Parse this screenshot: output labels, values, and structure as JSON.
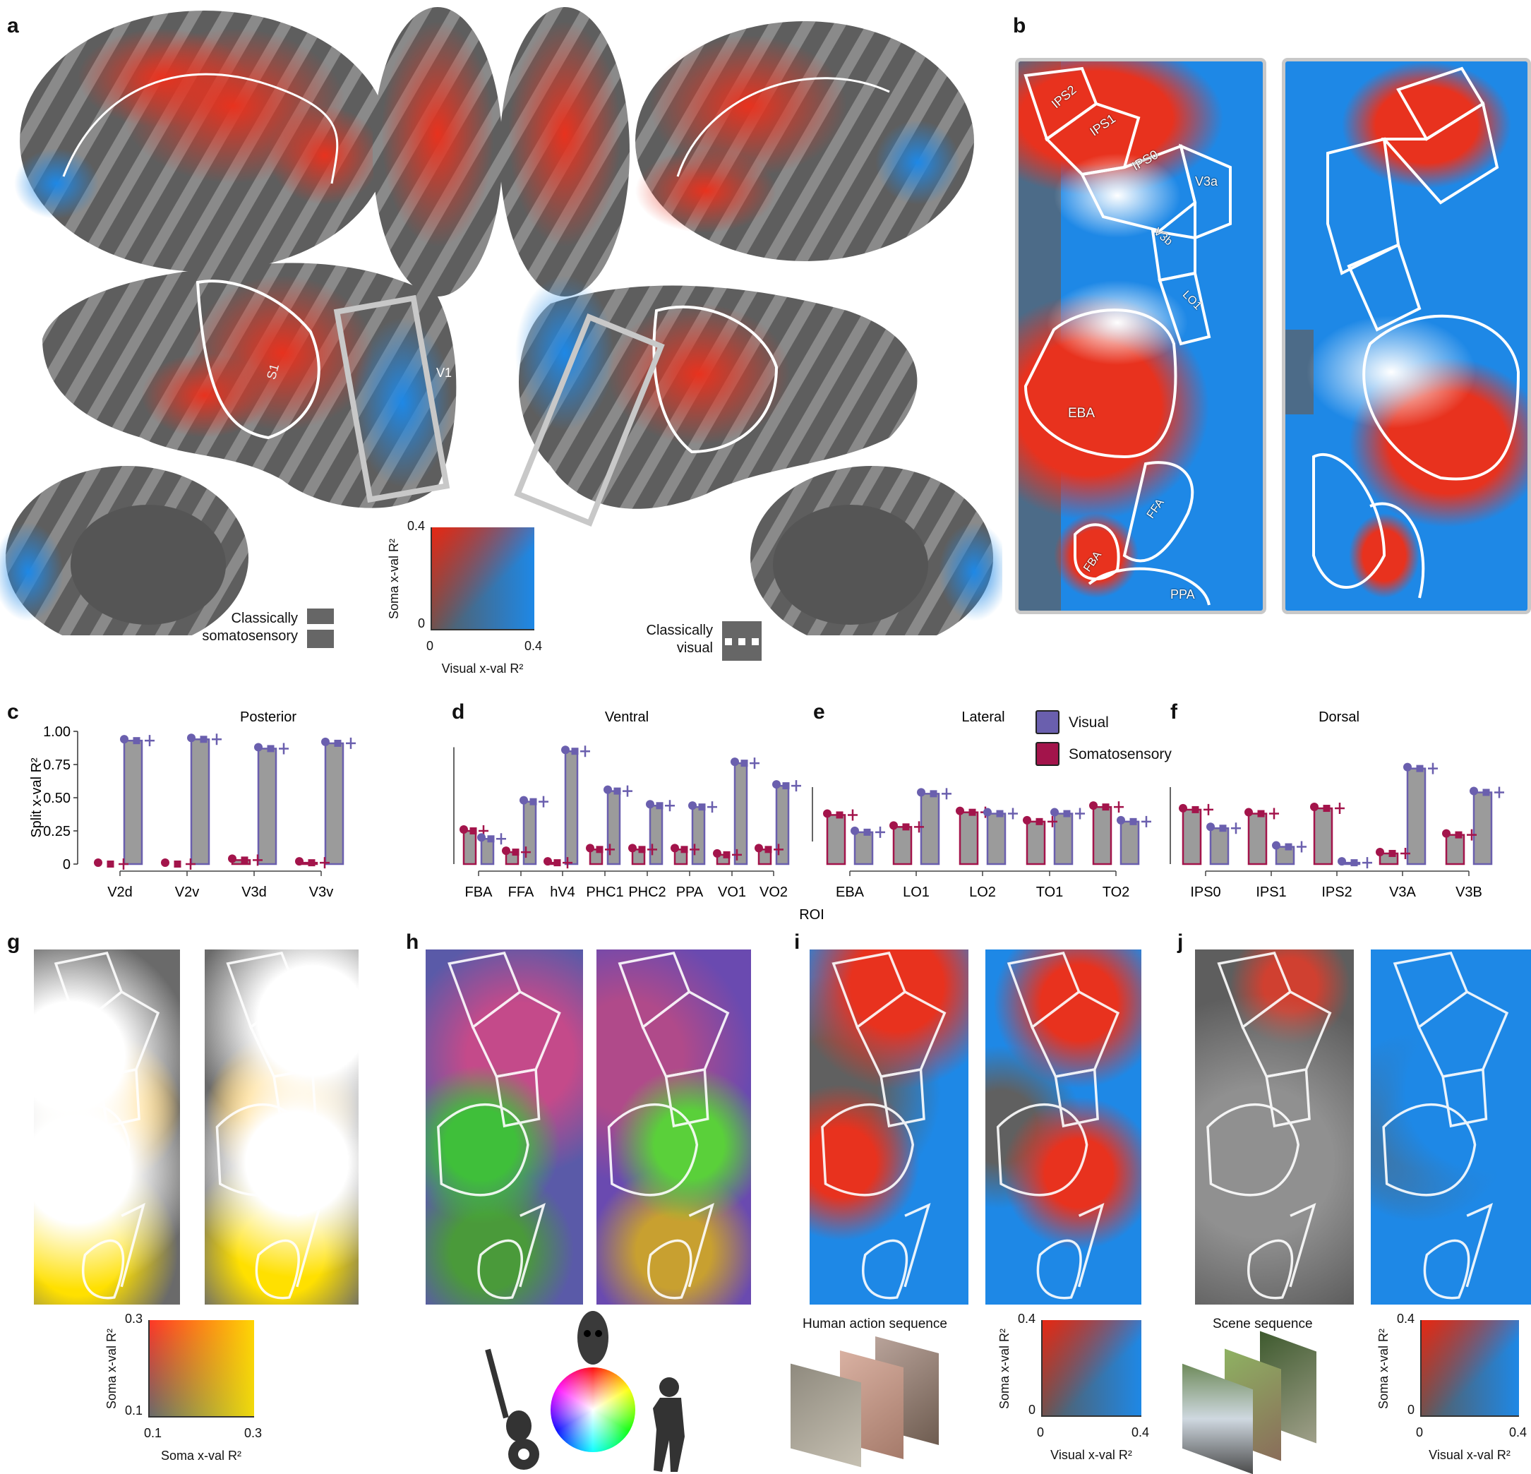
{
  "panel_labels": {
    "a": "a",
    "b": "b",
    "c": "c",
    "d": "d",
    "e": "e",
    "f": "f",
    "g": "g",
    "h": "h",
    "i": "i",
    "j": "j"
  },
  "panel_a": {
    "region_labels": {
      "s1": "S1",
      "v1": "V1"
    },
    "legend_soma": [
      "Classically",
      "somatosensory"
    ],
    "legend_visual": [
      "Classically",
      "visual"
    ],
    "colorbar": {
      "y_label": "Soma x-val R²",
      "x_label": "Visual x-val R²",
      "y_ticks": [
        "0.4",
        "0"
      ],
      "x_ticks": [
        "0",
        "0.4"
      ]
    }
  },
  "panel_b": {
    "roi_labels": [
      "IPS2",
      "IPS1",
      "IPS0",
      "V3a",
      "V3b",
      "LO1",
      "EBA",
      "FFA",
      "FBA",
      "PPA"
    ]
  },
  "chart_data": [
    {
      "type": "bar",
      "title": "Posterior",
      "ylabel": "Split x-val R²",
      "xlabel": "",
      "ylim": [
        0,
        1
      ],
      "yticks": [
        "0",
        "0.25",
        "0.50",
        "0.75",
        "1.00"
      ],
      "categories": [
        "V2d",
        "V2v",
        "V3d",
        "V3v"
      ],
      "series": [
        {
          "name": "Somatosensory",
          "values": [
            0.0,
            0.0,
            0.03,
            0.01
          ]
        },
        {
          "name": "Visual",
          "values": [
            0.93,
            0.94,
            0.87,
            0.91
          ]
        }
      ]
    },
    {
      "type": "bar",
      "title": "Ventral",
      "xlabel": "",
      "ylim": [
        0,
        1
      ],
      "categories": [
        "FBA",
        "FFA",
        "hV4",
        "PHC1",
        "PHC2",
        "PPA",
        "VO1",
        "VO2"
      ],
      "series": [
        {
          "name": "Somatosensory",
          "values": [
            0.25,
            0.09,
            0.01,
            0.11,
            0.11,
            0.11,
            0.07,
            0.11
          ]
        },
        {
          "name": "Visual",
          "values": [
            0.19,
            0.47,
            0.85,
            0.55,
            0.44,
            0.43,
            0.76,
            0.59
          ]
        }
      ]
    },
    {
      "type": "bar",
      "title": "Lateral",
      "xlabel": "ROI",
      "ylim": [
        0,
        1
      ],
      "categories": [
        "EBA",
        "LO1",
        "LO2",
        "TO1",
        "TO2"
      ],
      "series": [
        {
          "name": "Somatosensory",
          "values": [
            0.37,
            0.28,
            0.39,
            0.32,
            0.43
          ]
        },
        {
          "name": "Visual",
          "values": [
            0.24,
            0.53,
            0.38,
            0.38,
            0.32
          ]
        }
      ]
    },
    {
      "type": "bar",
      "title": "Dorsal",
      "xlabel": "",
      "ylim": [
        0,
        1
      ],
      "categories": [
        "IPS0",
        "IPS1",
        "IPS2",
        "V3A",
        "V3B"
      ],
      "series": [
        {
          "name": "Somatosensory",
          "values": [
            0.41,
            0.38,
            0.42,
            0.08,
            0.22
          ]
        },
        {
          "name": "Visual",
          "values": [
            0.27,
            0.13,
            0.01,
            0.72,
            0.54
          ]
        }
      ]
    }
  ],
  "legend": {
    "visual": "Visual",
    "somatosensory": "Somatosensory"
  },
  "colors": {
    "visual": "#6a5fae",
    "somatosensory": "#a3144b",
    "bar_fill": "#9b9b9b",
    "soma_map": "#e8321e",
    "visual_map": "#1e88e6"
  },
  "panel_g": {
    "colorbar": {
      "y_label": "Soma x-val R²",
      "x_label": "Soma x-val R²",
      "y_ticks": [
        "0.3",
        "0.1"
      ],
      "x_ticks": [
        "0.1",
        "0.3"
      ]
    }
  },
  "panel_h": {
    "icons": [
      "face-icon",
      "guitar-icon",
      "color-wheel-icon",
      "body-icon"
    ]
  },
  "panel_i": {
    "caption": "Human action sequence",
    "colorbar": {
      "y_label": "Soma x-val R²",
      "x_label": "Visual x-val R²",
      "y_ticks": [
        "0.4",
        "0"
      ],
      "x_ticks": [
        "0",
        "0.4"
      ]
    }
  },
  "panel_j": {
    "caption": "Scene sequence",
    "colorbar": {
      "y_label": "Soma x-val R²",
      "x_label": "Visual x-val R²",
      "y_ticks": [
        "0.4",
        "0"
      ],
      "x_ticks": [
        "0",
        "0.4"
      ]
    }
  }
}
